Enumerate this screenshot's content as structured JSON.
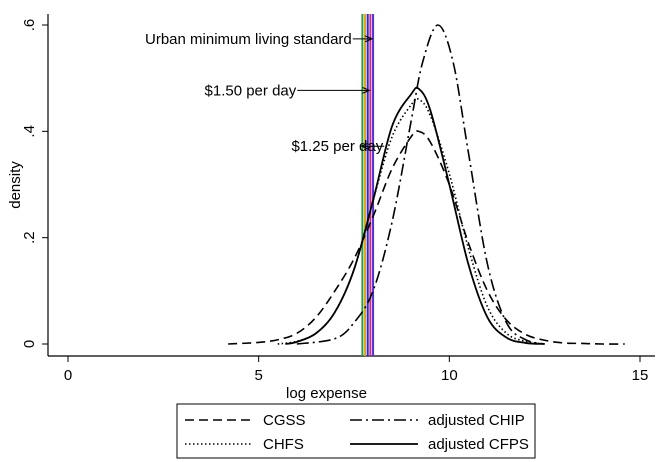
{
  "chart_data": {
    "type": "line",
    "xlabel": "log expense",
    "ylabel": "density",
    "xlim": [
      0,
      15
    ],
    "ylim": [
      0,
      0.62
    ],
    "x_ticks": [
      {
        "value": 0,
        "label": "0"
      },
      {
        "value": 5,
        "label": "5"
      },
      {
        "value": 10,
        "label": "10"
      },
      {
        "value": 15,
        "label": "15"
      }
    ],
    "y_ticks": [
      {
        "value": 0,
        "label": "0"
      },
      {
        "value": 0.2,
        "label": ".2"
      },
      {
        "value": 0.4,
        "label": ".4"
      },
      {
        "value": 0.6,
        "label": ".6"
      }
    ],
    "grid": false,
    "legend_position": "bottom",
    "series": [
      {
        "name": "CGSS",
        "style": "dashed",
        "color": "#000000",
        "x": [
          4.2,
          5.0,
          5.5,
          6.0,
          6.5,
          7.0,
          7.5,
          8.0,
          8.5,
          9.0,
          9.2,
          9.5,
          10.0,
          10.5,
          11.0,
          11.5,
          12.0,
          12.5,
          13.0,
          13.5,
          14.0,
          14.6
        ],
        "y": [
          0.0,
          0.003,
          0.008,
          0.02,
          0.05,
          0.1,
          0.16,
          0.24,
          0.33,
          0.39,
          0.4,
          0.38,
          0.3,
          0.19,
          0.1,
          0.045,
          0.018,
          0.007,
          0.002,
          0.001,
          0.0,
          0.0
        ]
      },
      {
        "name": "adjusted CHIP",
        "style": "dashdot",
        "color": "#000000",
        "x": [
          6.0,
          7.0,
          7.5,
          8.0,
          8.5,
          9.0,
          9.3,
          9.7,
          10.1,
          10.5,
          11.0,
          11.5,
          12.0,
          12.5
        ],
        "y": [
          0.0,
          0.01,
          0.04,
          0.1,
          0.23,
          0.42,
          0.53,
          0.6,
          0.53,
          0.36,
          0.15,
          0.04,
          0.008,
          0.0
        ]
      },
      {
        "name": "CHFS",
        "style": "dotted",
        "color": "#000000",
        "x": [
          5.5,
          6.0,
          6.5,
          7.0,
          7.5,
          8.0,
          8.5,
          9.0,
          9.2,
          9.5,
          10.0,
          10.5,
          11.0,
          11.5,
          12.0,
          12.5
        ],
        "y": [
          0.0,
          0.005,
          0.02,
          0.06,
          0.14,
          0.27,
          0.39,
          0.45,
          0.46,
          0.43,
          0.32,
          0.18,
          0.07,
          0.02,
          0.005,
          0.0
        ]
      },
      {
        "name": "adjusted CFPS",
        "style": "solid",
        "color": "#000000",
        "x": [
          5.7,
          6.0,
          6.5,
          7.0,
          7.5,
          8.0,
          8.5,
          9.0,
          9.2,
          9.5,
          10.0,
          10.5,
          11.0,
          11.5,
          12.0,
          12.5
        ],
        "y": [
          0.0,
          0.004,
          0.02,
          0.06,
          0.14,
          0.27,
          0.41,
          0.47,
          0.48,
          0.44,
          0.3,
          0.15,
          0.05,
          0.012,
          0.002,
          0.0
        ]
      }
    ],
    "vertical_lines": [
      {
        "x": 7.72,
        "color": "#2e9e3a"
      },
      {
        "x": 7.79,
        "color": "#e0a020"
      },
      {
        "x": 7.86,
        "color": "#2a2ad0"
      },
      {
        "x": 7.93,
        "color": "#d02a8a"
      },
      {
        "x": 8.0,
        "color": "#5030d0"
      }
    ],
    "annotations": [
      {
        "text": "Urban minimum living standard",
        "arrow_to": [
          8.0,
          0.574
        ],
        "text_anchor_x": 2.02
      },
      {
        "text": "$1.50 per day",
        "arrow_to": [
          7.93,
          0.477
        ],
        "text_anchor_x": 3.58
      },
      {
        "text": "$1.25 per day",
        "arrow_to": [
          7.72,
          0.372
        ],
        "text_anchor_x": 5.86
      }
    ]
  }
}
